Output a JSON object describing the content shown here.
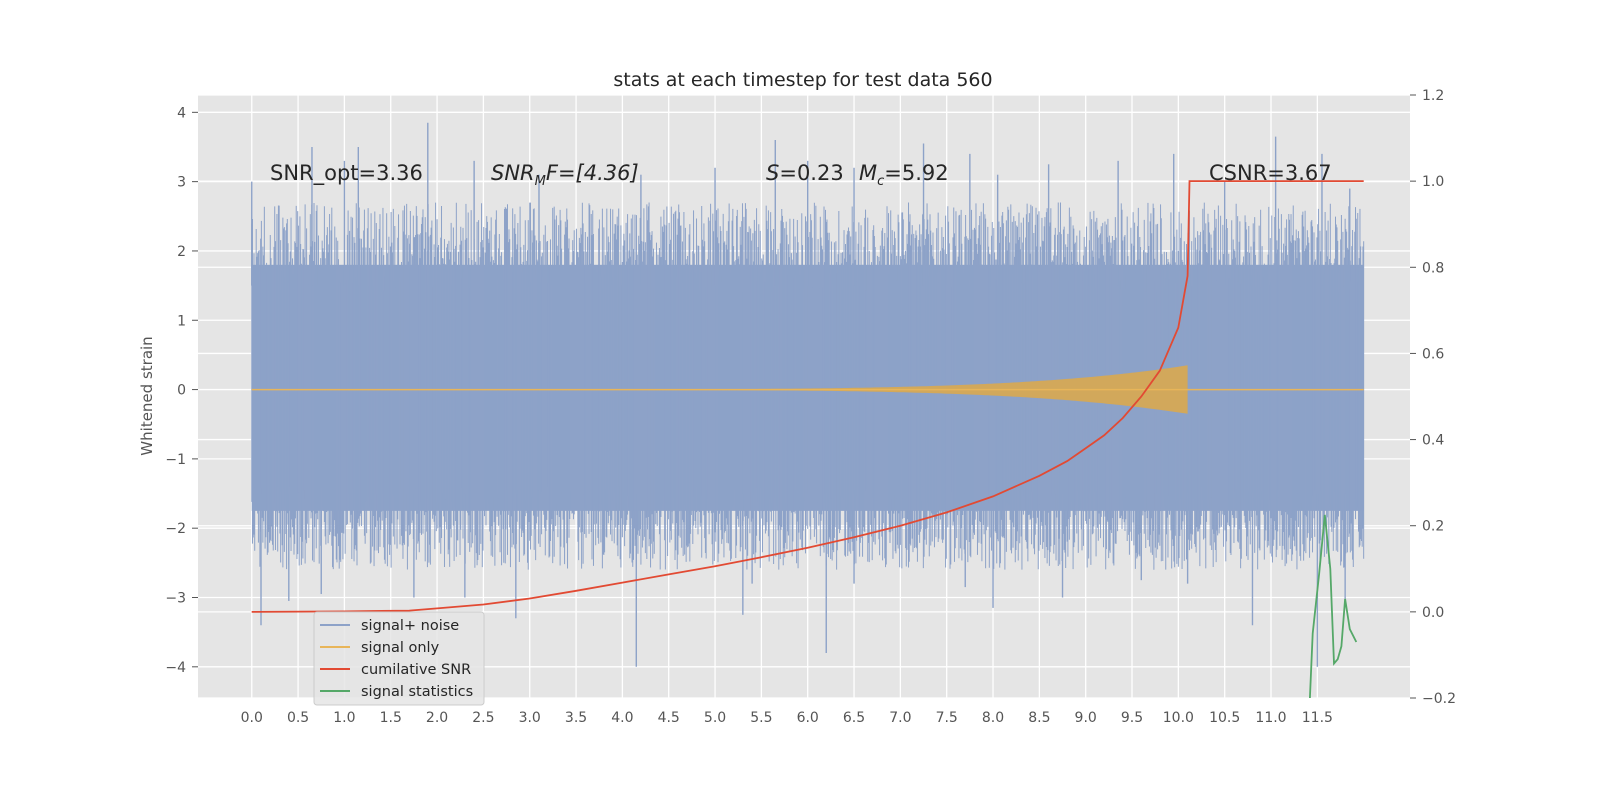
{
  "chart_data": {
    "type": "line",
    "title": "stats at each timestep for test data 560",
    "ylabel": "Whitened strain",
    "xlabel": "",
    "xlim": [
      -0.58,
      12.5
    ],
    "ylim": [
      -4.45,
      4.25
    ],
    "y2lim": [
      -0.2,
      1.2
    ],
    "x_ticks": [
      "0.0",
      "0.5",
      "1.0",
      "1.5",
      "2.0",
      "2.5",
      "3.0",
      "3.5",
      "4.0",
      "4.5",
      "5.0",
      "5.5",
      "6.0",
      "6.5",
      "7.0",
      "7.5",
      "8.0",
      "8.5",
      "9.0",
      "9.5",
      "10.0",
      "10.5",
      "11.0",
      "11.5"
    ],
    "y_ticks": [
      "−4",
      "−3",
      "−2",
      "−1",
      "0",
      "1",
      "2",
      "3",
      "4"
    ],
    "y2_ticks": [
      "−0.2",
      "0.0",
      "0.2",
      "0.4",
      "0.6",
      "0.8",
      "1.0",
      "1.2"
    ],
    "grid": true,
    "legend_position": "lower-left",
    "annotations": {
      "snr_opt": "SNR_opt=3.36",
      "snr_mf_prefix": "SNR",
      "snr_mf_sub": "M",
      "snr_mf_suffix": "F=[4.36]",
      "s_prefix": "S",
      "s_value": "=0.23",
      "mc_prefix": "M",
      "mc_sub": "c",
      "mc_value": "=5.92",
      "csnr": "CSNR=3.67"
    },
    "series": [
      {
        "name": "signal+ noise",
        "color": "#8da2c8",
        "axis": "left",
        "x_range": [
          0.0,
          12.0
        ],
        "envelope_upper": 1.8,
        "envelope_lower": -1.75,
        "peaks": [
          [
            0.0,
            3.0
          ],
          [
            0.65,
            3.5
          ],
          [
            1.0,
            3.3
          ],
          [
            1.15,
            3.5
          ],
          [
            1.9,
            3.85
          ],
          [
            2.4,
            3.3
          ],
          [
            3.1,
            3.1
          ],
          [
            4.2,
            3.1
          ],
          [
            5.0,
            3.2
          ],
          [
            5.65,
            3.6
          ],
          [
            6.0,
            3.3
          ],
          [
            6.5,
            3.2
          ],
          [
            7.25,
            3.55
          ],
          [
            7.75,
            3.4
          ],
          [
            8.05,
            3.1
          ],
          [
            8.6,
            3.25
          ],
          [
            9.35,
            3.3
          ],
          [
            9.95,
            3.4
          ],
          [
            10.5,
            3.0
          ],
          [
            11.05,
            3.65
          ],
          [
            11.55,
            3.4
          ],
          [
            11.85,
            2.9
          ]
        ],
        "troughs": [
          [
            0.1,
            -3.4
          ],
          [
            0.4,
            -3.05
          ],
          [
            0.75,
            -2.95
          ],
          [
            1.75,
            -3.0
          ],
          [
            2.3,
            -3.0
          ],
          [
            2.85,
            -3.3
          ],
          [
            4.15,
            -4.0
          ],
          [
            5.3,
            -3.25
          ],
          [
            5.4,
            -2.8
          ],
          [
            6.2,
            -3.8
          ],
          [
            6.5,
            -2.8
          ],
          [
            7.7,
            -2.85
          ],
          [
            8.0,
            -3.15
          ],
          [
            8.75,
            -3.0
          ],
          [
            9.6,
            -2.75
          ],
          [
            10.1,
            -2.8
          ],
          [
            10.8,
            -3.4
          ],
          [
            11.5,
            -4.0
          ],
          [
            11.8,
            -3.1
          ]
        ]
      },
      {
        "name": "signal only",
        "color": "#e8b559",
        "axis": "left",
        "chirp_start": 0.0,
        "chirp_end": 10.1,
        "amplitude_end": 0.35,
        "flat_end": 12.0
      },
      {
        "name": "cumilative SNR",
        "color": "#e24a33",
        "axis": "right",
        "x": [
          0.0,
          1.0,
          1.7,
          2.0,
          2.5,
          3.0,
          3.5,
          4.0,
          4.5,
          5.0,
          5.5,
          6.0,
          6.5,
          7.0,
          7.5,
          8.0,
          8.5,
          8.8,
          9.0,
          9.2,
          9.4,
          9.6,
          9.8,
          10.0,
          10.1,
          10.12,
          11.5,
          12.0
        ],
        "y": [
          0.0,
          0.001,
          0.003,
          0.008,
          0.017,
          0.031,
          0.049,
          0.068,
          0.087,
          0.106,
          0.127,
          0.149,
          0.173,
          0.2,
          0.231,
          0.268,
          0.316,
          0.35,
          0.38,
          0.41,
          0.45,
          0.5,
          0.56,
          0.66,
          0.78,
          1.0,
          1.0,
          1.0
        ]
      },
      {
        "name": "signal statistics",
        "color": "#55a868",
        "axis": "right",
        "x": [
          11.42,
          11.45,
          11.52,
          11.58,
          11.64,
          11.68,
          11.72,
          11.76,
          11.8,
          11.85,
          11.92
        ],
        "y": [
          -0.2,
          -0.05,
          0.09,
          0.225,
          0.1,
          -0.12,
          -0.11,
          -0.08,
          0.03,
          -0.04,
          -0.07
        ]
      }
    ]
  }
}
